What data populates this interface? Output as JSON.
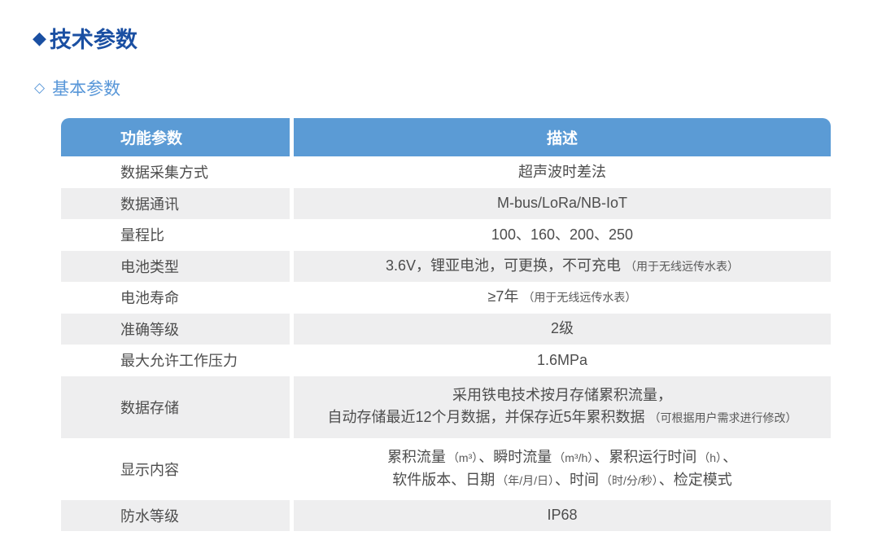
{
  "header": {
    "title_bullet": "◆",
    "title": "技术参数",
    "subtitle_bullet": "◇",
    "subtitle": "基本参数"
  },
  "colors": {
    "title_navy": "#1A4FA2",
    "subtitle_blue": "#5796D8",
    "table_header_blue": "#5B9BD5",
    "row_stripe_gray": "#EEEEEF",
    "body_text_gray": "#4D4D4D",
    "note_text_gray": "#595959"
  },
  "table": {
    "col_headers": {
      "param": "功能参数",
      "desc": "描述"
    },
    "rows": [
      {
        "param": "数据采集方式",
        "desc": "超声波时差法"
      },
      {
        "param": "数据通讯",
        "desc": "M-bus/LoRa/NB-IoT"
      },
      {
        "param": "量程比",
        "desc": "100、160、200、250"
      },
      {
        "param": "电池类型",
        "desc": "3.6V，锂亚电池，可更换，不可充电",
        "note": "（用于无线远传水表）"
      },
      {
        "param": "电池寿命",
        "desc": "≥7年",
        "note": "（用于无线远传水表）"
      },
      {
        "param": "准确等级",
        "desc": "2级"
      },
      {
        "param": "最大允许工作压力",
        "desc": "1.6MPa"
      },
      {
        "param": "数据存储",
        "line1": "采用铁电技术按月存储累积流量，",
        "line2": "自动存储最近12个月数据，并保存近5年累积数据",
        "line2_note": "（可根据用户需求进行修改）"
      },
      {
        "param": "显示内容",
        "l1": [
          {
            "t": "累积流量"
          },
          {
            "t": "（m³）",
            "small": true
          },
          {
            "t": "、瞬时流量"
          },
          {
            "t": "（m³/h）",
            "small": true
          },
          {
            "t": "、累积运行时间"
          },
          {
            "t": "（h）",
            "small": true
          },
          {
            "t": "、"
          }
        ],
        "l2": [
          {
            "t": "软件版本、日期"
          },
          {
            "t": "（年/月/日）",
            "small": true
          },
          {
            "t": "、时间"
          },
          {
            "t": "（时/分/秒）",
            "small": true
          },
          {
            "t": "、检定模式"
          }
        ]
      },
      {
        "param": "防水等级",
        "desc": "IP68"
      }
    ]
  }
}
